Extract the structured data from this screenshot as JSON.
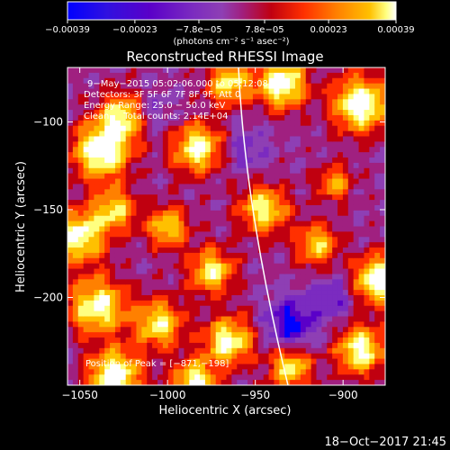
{
  "chart_data": {
    "type": "heatmap",
    "title": "Reconstructed RHESSI Image",
    "xlabel": "Heliocentric X (arcsec)",
    "ylabel": "Heliocentric Y (arcsec)",
    "xlim": [
      -1057,
      -876
    ],
    "ylim": [
      -250,
      -69
    ],
    "x_ticks": [
      -1050,
      -1000,
      -950,
      -900
    ],
    "x_tick_labels": [
      "−1050",
      "−1000",
      "−950",
      "−900"
    ],
    "y_ticks": [
      -100,
      -150,
      -200
    ],
    "y_tick_labels": [
      "−100",
      "−150",
      "−200"
    ],
    "colorbar": {
      "min": -0.00039,
      "max": 0.00039,
      "ticks": [
        -0.00039,
        -0.00023,
        -7.8e-05,
        7.8e-05,
        0.00023,
        0.00039
      ],
      "tick_labels": [
        "−0.00039",
        "−0.00023",
        "−7.8e−05",
        "7.8e−05",
        "0.00023",
        "0.00039"
      ],
      "units_label": "(photons cm⁻² s⁻¹ asec⁻²)",
      "colors": [
        "#0000ff",
        "#5a00c8",
        "#7b2bc0",
        "#8e3fb4",
        "#a02080",
        "#c00010",
        "#ff3000",
        "#ff8000",
        "#ffc000",
        "#ffff80",
        "#ffffff"
      ]
    },
    "annotations": [
      "9−May−2015 05:02:06.000 to 05:12:08.000",
      "Detectors: 3F 5F 6F 7F 8F 9F, Att 0",
      "Energy Range: 25.0 − 50.0 keV",
      "Clean     Total counts: 2.14E+04"
    ],
    "peak_label": "Position of Peak = [−871,−198]",
    "grid": false,
    "limb_line": true
  },
  "footer": {
    "timestamp": "18−Oct−2017 21:45"
  }
}
